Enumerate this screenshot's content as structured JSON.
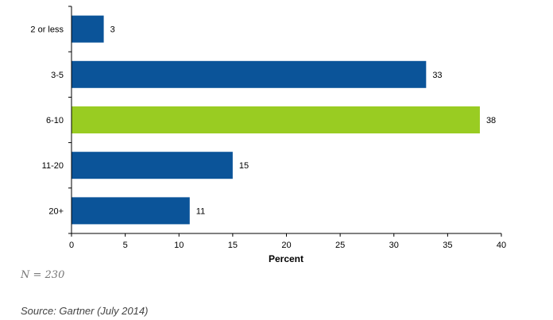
{
  "chart_data": {
    "type": "bar",
    "orientation": "horizontal",
    "categories": [
      "2 or less",
      "3-5",
      "6-10",
      "11-20",
      "20+"
    ],
    "values": [
      3,
      33,
      38,
      15,
      11
    ],
    "bar_colors": [
      "#0b5499",
      "#0b5499",
      "#99cc22",
      "#0b5499",
      "#0b5499"
    ],
    "highlight_category": "6-10",
    "xlabel": "Percent",
    "ylabel": "",
    "xlim": [
      0,
      40
    ],
    "xticks": [
      0,
      5,
      10,
      15,
      20,
      25,
      30,
      35,
      40
    ],
    "grid": false,
    "legend": "none",
    "data_labels": true
  },
  "note": "N = 230",
  "source": "Source: Gartner (July 2014)"
}
